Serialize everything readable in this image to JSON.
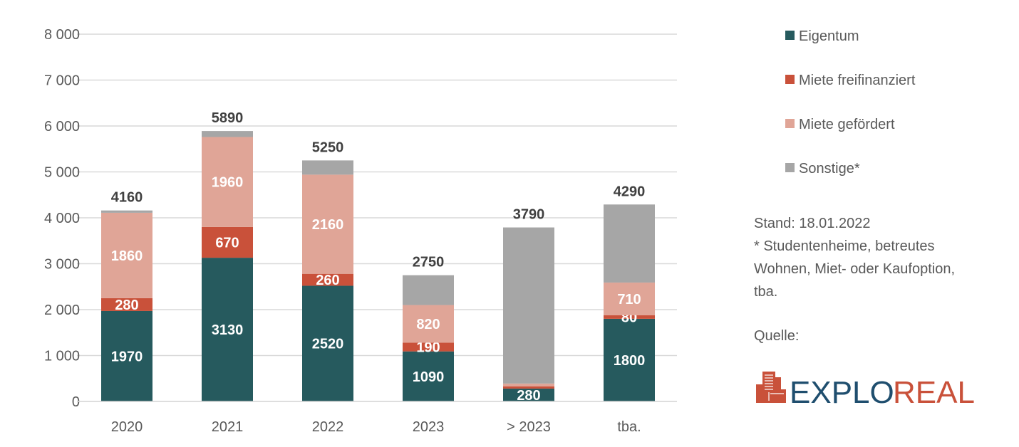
{
  "chart_data": {
    "type": "bar",
    "stacked": true,
    "categories": [
      "2020",
      "2021",
      "2022",
      "2023",
      "> 2023",
      "tba."
    ],
    "series": [
      {
        "name": "Eigentum",
        "color": "#265a5e",
        "values": [
          1970,
          3130,
          2520,
          1090,
          280,
          1800
        ],
        "labels": [
          "1970",
          "3130",
          "2520",
          "1090",
          "280",
          "1800"
        ]
      },
      {
        "name": "Miete freifinanziert",
        "color": "#c9513a",
        "values": [
          280,
          670,
          260,
          190,
          50,
          80
        ],
        "labels": [
          "280",
          "670",
          "260",
          "190",
          "50",
          "80"
        ]
      },
      {
        "name": "Miete gefördert",
        "color": "#e0a597",
        "values": [
          1860,
          1960,
          2160,
          820,
          60,
          710
        ],
        "labels": [
          "1860",
          "1960",
          "2160",
          "820",
          "60",
          "710"
        ]
      },
      {
        "name": "Sonstige*",
        "color": "#a6a6a6",
        "values": [
          50,
          130,
          310,
          650,
          3400,
          1700
        ],
        "labels": [
          "",
          "",
          "",
          "",
          "",
          ""
        ]
      }
    ],
    "totals": [
      "4160",
      "5890",
      "5250",
      "2750",
      "3790",
      "4290"
    ],
    "ylim": [
      0,
      8000
    ],
    "yticks": [
      0,
      1000,
      2000,
      3000,
      4000,
      5000,
      6000,
      7000,
      8000
    ],
    "ytick_labels": [
      "0",
      "1 000",
      "2 000",
      "3 000",
      "4 000",
      "5 000",
      "6 000",
      "7 000",
      "8 000"
    ],
    "grid": true,
    "legend_position": "right",
    "title": "",
    "xlabel": "",
    "ylabel": ""
  },
  "notes": {
    "stand": "Stand: 18.01.2022",
    "footnote_lines": [
      "* Studentenheime, betreutes",
      "Wohnen, Miet- oder Kaufoption,",
      "tba."
    ],
    "source_label": "Quelle:"
  },
  "logo": {
    "text_a": "EXPLO",
    "text_b": "REAL"
  }
}
